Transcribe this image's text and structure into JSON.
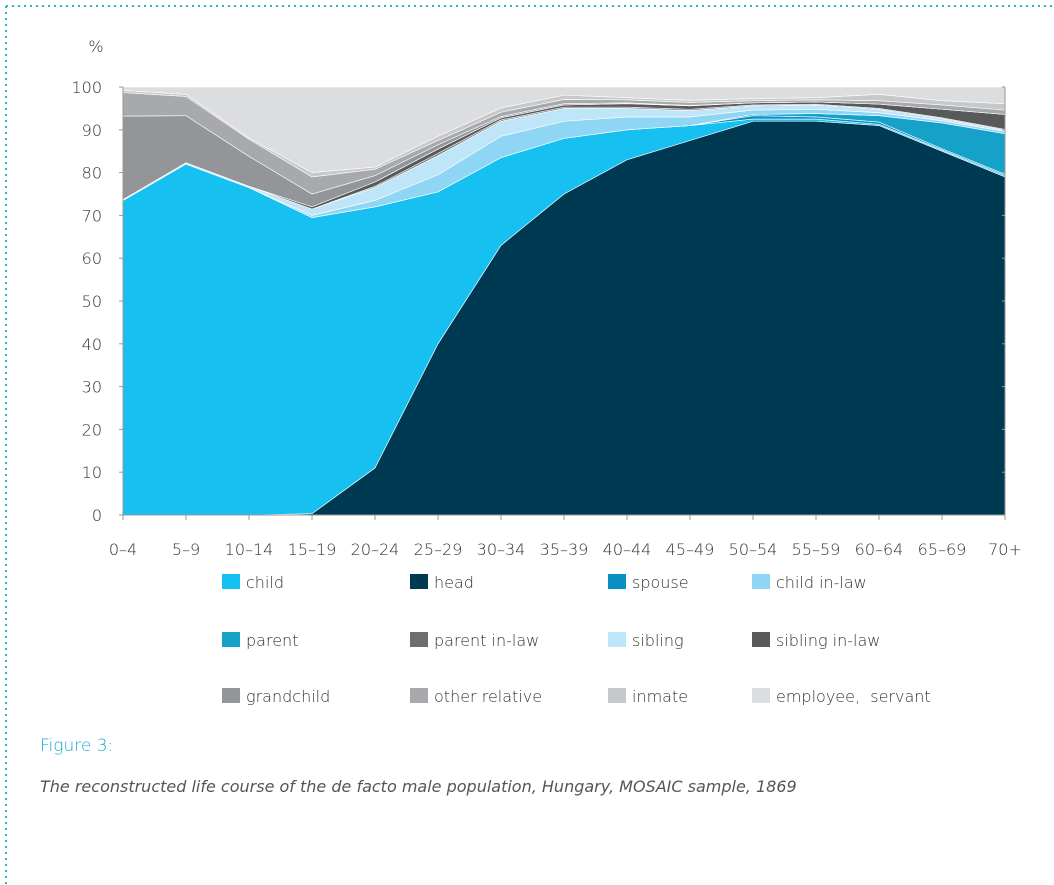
{
  "chart_data": {
    "type": "stacked_area",
    "y_label": "%",
    "categories": [
      "0–4",
      "5–9",
      "10–14",
      "15–19",
      "20–24",
      "25–29",
      "30–34",
      "35–39",
      "40–44",
      "45–49",
      "50–54",
      "55–59",
      "60–64",
      "65–69",
      "70+"
    ],
    "ylim": [
      0,
      100
    ],
    "yticks": [
      0,
      10,
      20,
      30,
      40,
      50,
      60,
      70,
      80,
      90,
      100
    ],
    "series": [
      {
        "name": "child",
        "color": "#16c0f0",
        "values": [
          73.5,
          82,
          76.5,
          69.2,
          61,
          35.5,
          20.5,
          13,
          7,
          3.5,
          0.5,
          0.5,
          0.3,
          0.3,
          0.3
        ]
      },
      {
        "name": "head",
        "color": "#003a52",
        "values": [
          0,
          0,
          0,
          0.3,
          11,
          40,
          63,
          75,
          83,
          87.5,
          92,
          92,
          91,
          85,
          79
        ]
      },
      {
        "name": "spouse",
        "color": "#0a8fc4",
        "values": [
          0,
          0,
          0,
          0,
          0,
          0,
          0,
          0,
          0,
          0,
          0.8,
          0.5,
          0.5,
          0.3,
          0.3
        ]
      },
      {
        "name": "child in-law",
        "color": "#8fd6f5",
        "values": [
          0,
          0,
          0,
          0.5,
          1.5,
          4,
          5,
          4,
          3,
          2,
          1,
          1,
          0.7,
          0.5,
          0.5
        ]
      },
      {
        "name": "parent",
        "color": "#15a1c8",
        "values": [
          0,
          0,
          0,
          0,
          0,
          0,
          0,
          0,
          0,
          0,
          0.3,
          0.8,
          1.5,
          6,
          9.5
        ]
      },
      {
        "name": "parent in-law",
        "color": "#6d6e70",
        "values": [
          0,
          0,
          0,
          0,
          0.3,
          0.5,
          0.3,
          0.3,
          0.3,
          0.3,
          0.2,
          0.2,
          0.2,
          0.2,
          0.2
        ]
      },
      {
        "name": "sibling",
        "color": "#bfe6f8",
        "values": [
          0.2,
          0.3,
          0.3,
          1.5,
          3,
          4.5,
          3.5,
          3,
          2,
          1.5,
          1,
          1,
          0.8,
          0.5,
          0.3
        ]
      },
      {
        "name": "sibling in-law",
        "color": "#58595b",
        "values": [
          0,
          0,
          0,
          0.5,
          1,
          1,
          0.5,
          0.5,
          0.8,
          0.8,
          0.5,
          0.5,
          1,
          2,
          3.5
        ]
      },
      {
        "name": "grandchild",
        "color": "#939598",
        "values": [
          19.5,
          11,
          7,
          3,
          1.5,
          1,
          0.3,
          0.3,
          0.2,
          0.1,
          0,
          0,
          0,
          0,
          0
        ]
      },
      {
        "name": "other relative",
        "color": "#a7a9ac",
        "values": [
          5.5,
          4.5,
          4,
          4,
          1.5,
          1,
          1,
          1,
          0.7,
          0.7,
          0.5,
          0.5,
          0.8,
          1,
          1
        ]
      },
      {
        "name": "inmate",
        "color": "#c7c8ca",
        "values": [
          0.5,
          0.5,
          0.3,
          1,
          0.5,
          1,
          1,
          1,
          0.5,
          0.5,
          0.5,
          0.5,
          1.5,
          1,
          1.5
        ]
      },
      {
        "name": "employee,  servant",
        "color": "#dcdddf",
        "values": [
          0.8,
          1.7,
          11.9,
          20,
          18.7,
          11.5,
          4.9,
          1.9,
          2.5,
          3.1,
          2.7,
          2.5,
          1.7,
          3.2,
          3.9
        ]
      }
    ],
    "figure_label": "Figure 3:",
    "caption": "The reconstructed life course of the de facto male population, Hungary, MOSAIC sample, 1869"
  }
}
